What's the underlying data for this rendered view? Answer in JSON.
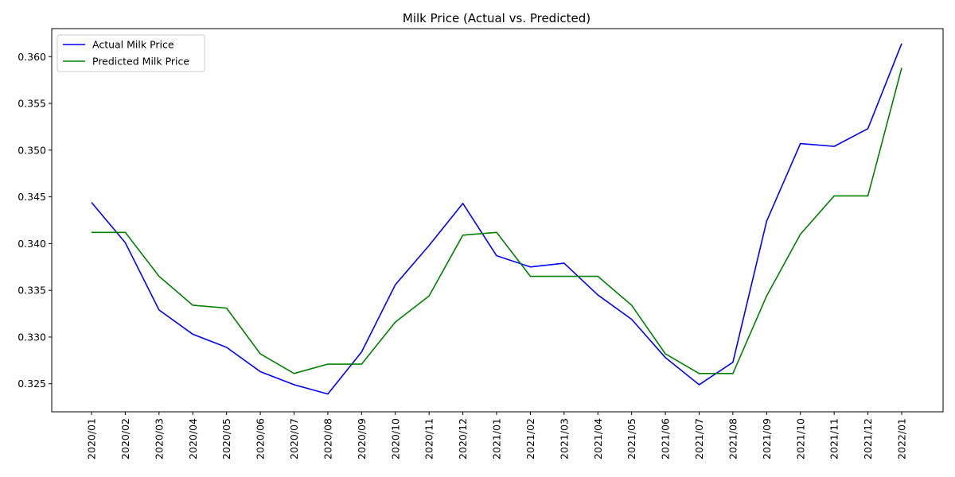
{
  "chart_data": {
    "type": "line",
    "title": "Milk Price (Actual vs. Predicted)",
    "xlabel": "",
    "ylabel": "",
    "categories": [
      "2020/01",
      "2020/02",
      "2020/03",
      "2020/04",
      "2020/05",
      "2020/06",
      "2020/07",
      "2020/08",
      "2020/09",
      "2020/10",
      "2020/11",
      "2020/12",
      "2021/01",
      "2021/02",
      "2021/03",
      "2021/04",
      "2021/05",
      "2021/06",
      "2021/07",
      "2021/08",
      "2021/09",
      "2021/10",
      "2021/11",
      "2021/12",
      "2022/01"
    ],
    "yticks": [
      "0.325",
      "0.330",
      "0.335",
      "0.340",
      "0.345",
      "0.350",
      "0.355",
      "0.360"
    ],
    "ylim": [
      0.322,
      0.363
    ],
    "grid": false,
    "legend_position": "top-left",
    "series": [
      {
        "name": "Actual Milk Price",
        "color": "#0000ff",
        "values": [
          0.3444,
          0.3401,
          0.3329,
          0.3303,
          0.3289,
          0.3263,
          0.3249,
          0.3239,
          0.3284,
          0.3356,
          0.3398,
          0.3443,
          0.3387,
          0.3375,
          0.3379,
          0.3345,
          0.3319,
          0.3278,
          0.3249,
          0.3273,
          0.3424,
          0.3507,
          0.3504,
          0.3523,
          0.3614
        ]
      },
      {
        "name": "Predicted Milk Price",
        "color": "#008000",
        "values": [
          0.3412,
          0.3412,
          0.3365,
          0.3334,
          0.3331,
          0.3282,
          0.3261,
          0.3271,
          0.3271,
          0.3316,
          0.3344,
          0.3409,
          0.3412,
          0.3365,
          0.3365,
          0.3365,
          0.3334,
          0.3282,
          0.3261,
          0.3261,
          0.3344,
          0.341,
          0.3451,
          0.3451,
          0.3588
        ]
      }
    ]
  }
}
